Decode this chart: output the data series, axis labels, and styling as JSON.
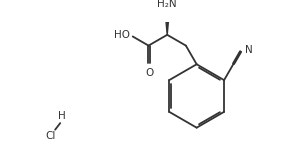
{
  "bg_color": "#ffffff",
  "line_color": "#333333",
  "line_width": 1.3,
  "font_size": 7.0,
  "figsize": [
    3.02,
    1.55
  ],
  "dpi": 100,
  "xlim": [
    0,
    10
  ],
  "ylim": [
    0,
    5.2
  ]
}
